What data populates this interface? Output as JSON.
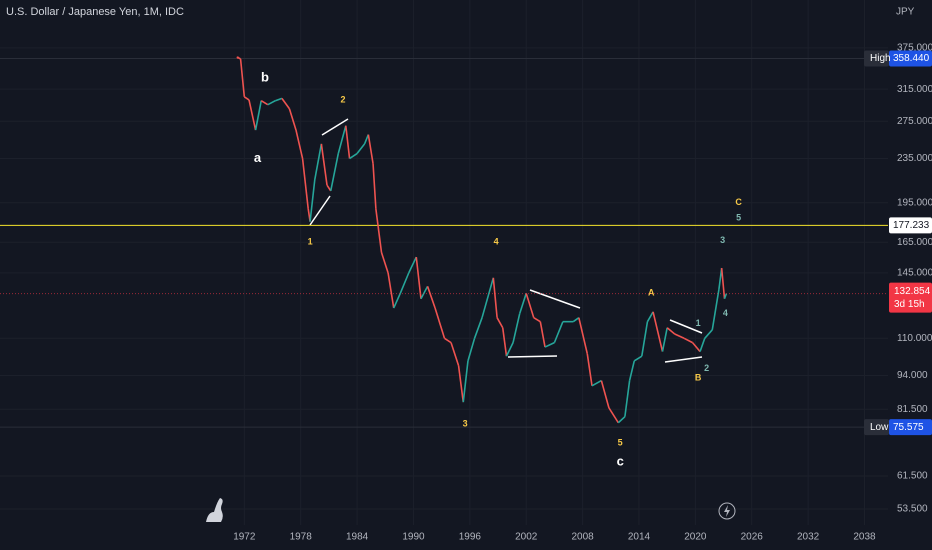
{
  "chart_data": {
    "type": "line",
    "title": "U.S. Dollar / Japanese Yen, 1M, IDC",
    "currency": "JPY",
    "log_scale": true,
    "grid": true,
    "up_color": "#26a69a",
    "down_color": "#ef5350",
    "x": [
      1971.3,
      1971.6,
      1972.0,
      1972.5,
      1973.2,
      1973.8,
      1974.5,
      1975.3,
      1976.0,
      1976.8,
      1977.5,
      1978.2,
      1978.8,
      1979.0,
      1979.5,
      1980.2,
      1980.8,
      1981.2,
      1982.0,
      1982.8,
      1983.2,
      1984.0,
      1984.8,
      1985.2,
      1985.7,
      1986.0,
      1986.6,
      1987.3,
      1987.9,
      1988.6,
      1989.5,
      1990.3,
      1990.8,
      1991.5,
      1992.3,
      1993.3,
      1994.0,
      1994.8,
      1995.3,
      1995.8,
      1996.5,
      1997.3,
      1998.5,
      1998.9,
      1999.5,
      1999.9,
      2000.6,
      2001.3,
      2002.0,
      2002.8,
      2003.5,
      2004.0,
      2005.0,
      2005.9,
      2007.0,
      2007.6,
      2008.5,
      2009.0,
      2010.0,
      2010.8,
      2011.8,
      2012.5,
      2013.0,
      2013.5,
      2014.3,
      2014.9,
      2015.5,
      2016.5,
      2017.0,
      2017.8,
      2018.8,
      2019.7,
      2020.5,
      2021.0,
      2021.8,
      2022.5,
      2022.8,
      2023.1,
      2023.3
    ],
    "values": [
      360,
      358,
      305,
      301,
      265,
      300,
      295,
      300,
      303,
      290,
      265,
      235,
      190,
      180,
      215,
      250,
      210,
      205,
      240,
      270,
      235,
      240,
      250,
      260,
      230,
      190,
      158,
      145,
      125,
      133,
      145,
      155,
      130,
      137,
      125,
      110,
      108,
      98,
      84,
      100,
      110,
      120,
      142,
      120,
      115,
      102,
      108,
      122,
      133,
      120,
      118,
      106,
      108,
      118,
      118,
      120,
      103,
      90,
      92,
      82,
      77,
      79,
      92,
      100,
      102,
      118,
      123,
      104,
      115,
      112,
      110,
      108,
      104,
      110,
      114,
      135,
      148,
      130,
      132.854
    ],
    "xlim": [
      1946,
      2040.5
    ],
    "ylim": [
      50,
      459
    ],
    "xticks": [
      1972,
      1978,
      1984,
      1990,
      1996,
      2002,
      2008,
      2014,
      2020,
      2026,
      2032,
      2038
    ],
    "yticks": [
      {
        "value": 375,
        "label": "375.000"
      },
      {
        "value": 315,
        "label": "315.000"
      },
      {
        "value": 275,
        "label": "275.000"
      },
      {
        "value": 235,
        "label": "235.000"
      },
      {
        "value": 195,
        "label": "195.000"
      },
      {
        "value": 165,
        "label": "165.000"
      },
      {
        "value": 145,
        "label": "145.000"
      },
      {
        "value": 110,
        "label": "110.000"
      },
      {
        "value": 94,
        "label": "94.000"
      },
      {
        "value": 81.5,
        "label": "81.500"
      },
      {
        "value": 61.5,
        "label": "61.500"
      },
      {
        "value": 53.5,
        "label": "53.500"
      }
    ],
    "reference_lines": [
      {
        "name": "High",
        "value": 358.44,
        "value_label": "358.440",
        "color": "#2a2e39",
        "box": "#1e53e5"
      },
      {
        "name": "Low",
        "value": 75.575,
        "value_label": "75.575",
        "color": "#2a2e39",
        "box": "#1e53e5"
      },
      {
        "value": 177.233,
        "value_label": "177.233",
        "color": "#f5e52b",
        "box": "#ffffff"
      }
    ],
    "last_price": {
      "value": 132.854,
      "value_label": "132.854",
      "countdown": "3d 15h",
      "color": "#f23645"
    },
    "annotations": [
      {
        "text": "b",
        "x": 1974.2,
        "y": 330,
        "color": "#ffffff"
      },
      {
        "text": "a",
        "x": 1973.4,
        "y": 235,
        "color": "#ffffff"
      },
      {
        "text": "2",
        "x": 1982.5,
        "y": 301,
        "color": "#f7c948"
      },
      {
        "text": "1",
        "x": 1979,
        "y": 165,
        "color": "#f7c948"
      },
      {
        "text": "4",
        "x": 1998.8,
        "y": 165,
        "color": "#f7c948"
      },
      {
        "text": "3",
        "x": 1995.5,
        "y": 76.6,
        "color": "#f7c948"
      },
      {
        "text": "5",
        "x": 2012,
        "y": 70.7,
        "color": "#f7c948"
      },
      {
        "text": "c",
        "x": 2012,
        "y": 65.2,
        "color": "#ffffff"
      },
      {
        "text": "A",
        "x": 2015.3,
        "y": 133,
        "color": "#f7c948"
      },
      {
        "text": "B",
        "x": 2020.3,
        "y": 93,
        "color": "#f7c948"
      },
      {
        "text": "C",
        "x": 2024.6,
        "y": 195,
        "color": "#f7c948"
      },
      {
        "text": "5",
        "x": 2024.6,
        "y": 182.6,
        "color": "#7fb8b0"
      },
      {
        "text": "3",
        "x": 2022.9,
        "y": 166,
        "color": "#7fb8b0"
      },
      {
        "text": "4",
        "x": 2023.2,
        "y": 122,
        "color": "#7fb8b0"
      },
      {
        "text": "1",
        "x": 2020.3,
        "y": 117,
        "color": "#7fb8b0"
      },
      {
        "text": "2",
        "x": 2021.2,
        "y": 96.7,
        "color": "#7fb8b0"
      }
    ]
  }
}
